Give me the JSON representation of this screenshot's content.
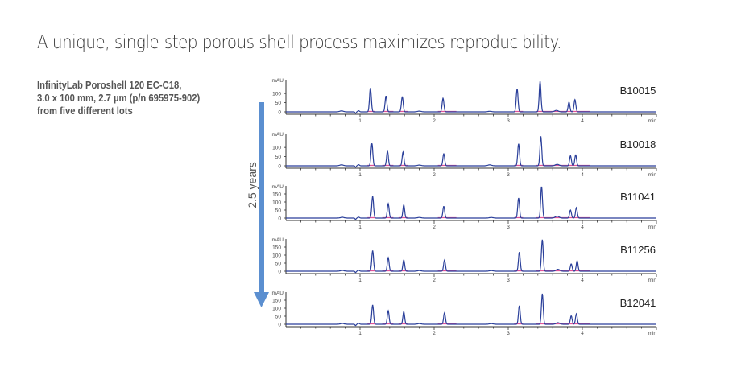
{
  "title": "A unique, single-step porous shell process maximizes reproducibility.",
  "description": [
    "InfinityLab Poroshell 120 EC-C18,",
    "3.0 x 100 mm, 2.7 µm (p/n 695975-902)",
    "from five different lots"
  ],
  "arrow_label": "2.5 years",
  "colors": {
    "trace": "#2a3f9a",
    "baseline": "#e0559a",
    "arrow": "#5b8fd0",
    "axis": "#333333"
  },
  "chart_data": {
    "type": "line",
    "xlabel": "min",
    "ylabel": "mAU",
    "xlim": [
      0,
      5
    ],
    "x_ticks": [
      "1",
      "2",
      "3",
      "4"
    ],
    "series": [
      {
        "name": "B10015",
        "y_ticks": [
          "100",
          "50",
          "0"
        ],
        "ymax": 175,
        "peaks": [
          [
            0.75,
            5
          ],
          [
            1.14,
            131
          ],
          [
            1.35,
            86
          ],
          [
            1.57,
            83
          ],
          [
            1.8,
            4
          ],
          [
            2.12,
            74
          ],
          [
            2.75,
            3
          ],
          [
            3.12,
            126
          ],
          [
            3.43,
            166
          ],
          [
            3.65,
            8
          ],
          [
            3.82,
            53
          ],
          [
            3.9,
            67
          ]
        ]
      },
      {
        "name": "B10018",
        "y_ticks": [
          "100",
          "50",
          "0"
        ],
        "ymax": 175,
        "peaks": [
          [
            0.75,
            5
          ],
          [
            1.16,
            122
          ],
          [
            1.37,
            80
          ],
          [
            1.58,
            75
          ],
          [
            1.8,
            4
          ],
          [
            2.13,
            66
          ],
          [
            2.75,
            5
          ],
          [
            3.14,
            120
          ],
          [
            3.44,
            160
          ],
          [
            3.66,
            8
          ],
          [
            3.84,
            55
          ],
          [
            3.91,
            60
          ]
        ]
      },
      {
        "name": "B11041",
        "y_ticks": [
          "150",
          "100",
          "50",
          "0"
        ],
        "ymax": 200,
        "peaks": [
          [
            0.76,
            5
          ],
          [
            1.17,
            135
          ],
          [
            1.38,
            90
          ],
          [
            1.59,
            82
          ],
          [
            1.8,
            4
          ],
          [
            2.13,
            73
          ],
          [
            2.77,
            4
          ],
          [
            3.14,
            125
          ],
          [
            3.45,
            195
          ],
          [
            3.66,
            12
          ],
          [
            3.84,
            50
          ],
          [
            3.92,
            65
          ]
        ]
      },
      {
        "name": "B11256",
        "y_ticks": [
          "150",
          "100",
          "50",
          "0"
        ],
        "ymax": 200,
        "peaks": [
          [
            0.76,
            5
          ],
          [
            1.17,
            128
          ],
          [
            1.38,
            85
          ],
          [
            1.59,
            70
          ],
          [
            1.8,
            4
          ],
          [
            2.14,
            70
          ],
          [
            2.77,
            4
          ],
          [
            3.15,
            118
          ],
          [
            3.46,
            196
          ],
          [
            3.67,
            12
          ],
          [
            3.85,
            45
          ],
          [
            3.93,
            65
          ]
        ]
      },
      {
        "name": "B12041",
        "y_ticks": [
          "150",
          "100",
          "50",
          "0"
        ],
        "ymax": 200,
        "peaks": [
          [
            0.76,
            5
          ],
          [
            1.17,
            120
          ],
          [
            1.38,
            85
          ],
          [
            1.59,
            78
          ],
          [
            1.8,
            4
          ],
          [
            2.14,
            72
          ],
          [
            2.77,
            4
          ],
          [
            3.15,
            115
          ],
          [
            3.46,
            190
          ],
          [
            3.67,
            10
          ],
          [
            3.85,
            52
          ],
          [
            3.92,
            65
          ]
        ]
      }
    ],
    "integration_baselines": [
      [
        1.1,
        1.2
      ],
      [
        1.3,
        1.45
      ],
      [
        1.52,
        1.65
      ],
      [
        2.05,
        2.3
      ],
      [
        3.08,
        3.2
      ],
      [
        3.38,
        4.1
      ]
    ]
  }
}
